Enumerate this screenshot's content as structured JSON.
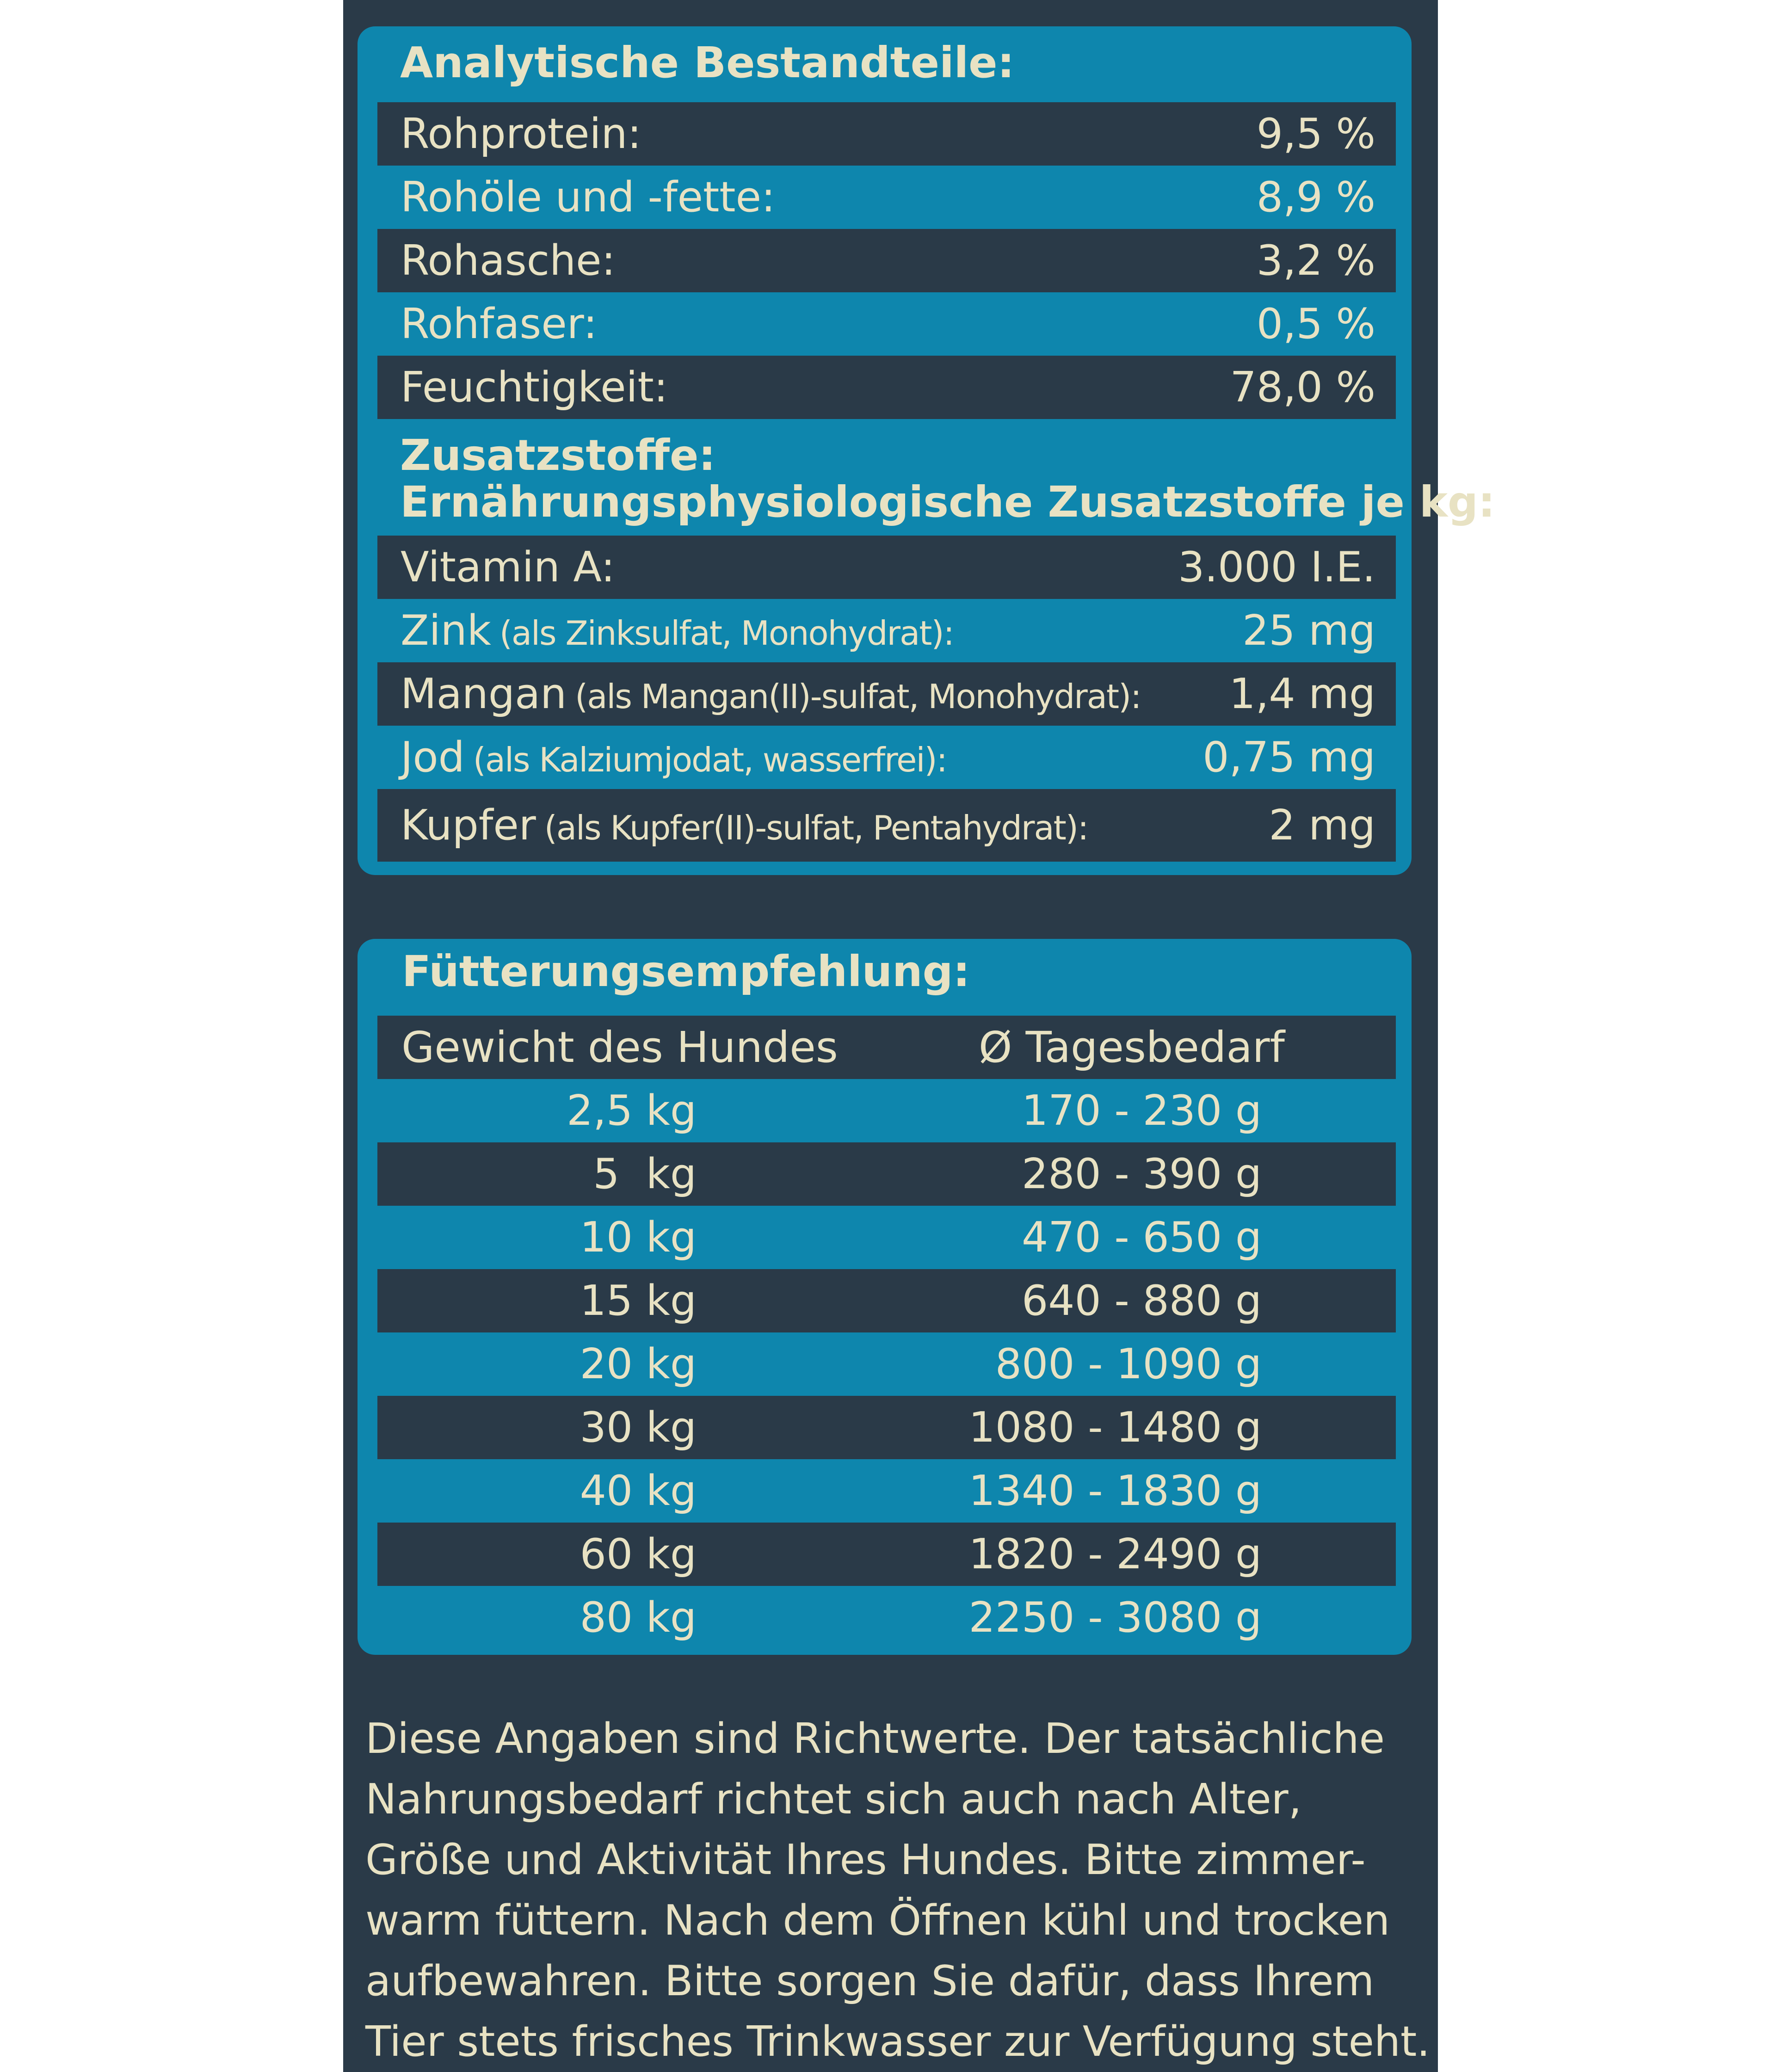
{
  "analytics": {
    "heading": "Analytische Bestandteile:",
    "rows": [
      {
        "name": "Rohprotein:",
        "value": "9,5 %"
      },
      {
        "name": "Rohöle und -fette:",
        "value": "8,9 %"
      },
      {
        "name": "Rohasche:",
        "value": "3,2 %"
      },
      {
        "name": "Rohfaser:",
        "value": "0,5 %"
      },
      {
        "name": "Feuchtigkeit:",
        "value": "78,0 %"
      }
    ],
    "additives_heading": "Zusatzstoffe:",
    "additives_subheading": "Ernährungsphysiologische Zusatzstoffe je kg:",
    "additives": [
      {
        "name": "Vitamin A:",
        "note": "",
        "value": "3.000 I.E."
      },
      {
        "name": "Zink",
        "note": "(als Zinksulfat, Monohydrat):",
        "value": "25 mg"
      },
      {
        "name": "Mangan",
        "note": "(als Mangan(II)-sulfat, Monohydrat):",
        "value": "1,4 mg"
      },
      {
        "name": "Jod",
        "note": "(als Kalziumjodat, wasserfrei):",
        "value": "0,75 mg"
      },
      {
        "name": "Kupfer",
        "note": "(als Kupfer(II)-sulfat, Pentahydrat):",
        "value": "2 mg"
      }
    ]
  },
  "feeding": {
    "heading": "Fütterungsempfehlung:",
    "col_weight": "Gewicht  des Hundes",
    "col_daily": "Ø Tagesbedarf",
    "rows": [
      {
        "weight": "2,5 kg",
        "daily": "170 - 230 g"
      },
      {
        "weight": "5  kg",
        "daily": "280 - 390 g"
      },
      {
        "weight": "10 kg",
        "daily": "470 - 650 g"
      },
      {
        "weight": "15 kg",
        "daily": "640 - 880 g"
      },
      {
        "weight": "20 kg",
        "daily": "800 - 1090 g"
      },
      {
        "weight": "30 kg",
        "daily": "1080 - 1480 g"
      },
      {
        "weight": "40 kg",
        "daily": "1340 - 1830 g"
      },
      {
        "weight": "60 kg",
        "daily": "1820 - 2490 g"
      },
      {
        "weight": "80 kg",
        "daily": "2250 - 3080 g"
      }
    ]
  },
  "footnote": {
    "lines": [
      "Diese Angaben sind Richtwerte. Der tatsächliche",
      "Nahrungsbedarf richtet sich auch nach Alter,",
      "Größe und Aktivität Ihres Hundes. Bitte zimmer-",
      "warm füttern. Nach dem Öffnen kühl und trocken",
      "aufbewahren. Bitte sorgen Sie dafür, dass Ihrem",
      "Tier stets frisches Trinkwasser zur Verfügung steht."
    ]
  },
  "colors": {
    "background_dark": "#2a3a48",
    "card_blue": "#0e86ad",
    "text_cream": "#e8e2c3"
  }
}
